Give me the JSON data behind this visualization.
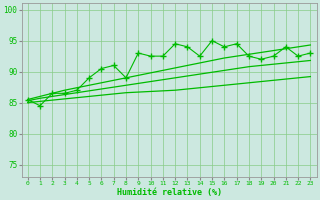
{
  "xlabel": "Humidité relative (%)",
  "xlim": [
    -0.5,
    23.5
  ],
  "ylim": [
    73,
    101
  ],
  "xticks": [
    0,
    1,
    2,
    3,
    4,
    5,
    6,
    7,
    8,
    9,
    10,
    11,
    12,
    13,
    14,
    15,
    16,
    17,
    18,
    19,
    20,
    21,
    22,
    23
  ],
  "yticks": [
    75,
    80,
    85,
    90,
    95,
    100
  ],
  "bg_color": "#cce8e0",
  "grid_color": "#88cc88",
  "line_color": "#00bb00",
  "x_data": [
    0,
    1,
    2,
    3,
    4,
    5,
    6,
    7,
    8,
    9,
    10,
    11,
    12,
    13,
    14,
    15,
    16,
    17,
    18,
    19,
    20,
    21,
    22,
    23
  ],
  "y_jagged": [
    85.5,
    84.5,
    86.5,
    86.5,
    87.0,
    89.0,
    90.5,
    91.0,
    89.0,
    93.0,
    92.5,
    92.5,
    94.5,
    94.0,
    92.5,
    95.0,
    94.0,
    94.5,
    92.5,
    92.0,
    92.5,
    94.0,
    92.5,
    93.0
  ],
  "y_upper_line": [
    85.5,
    86.0,
    86.5,
    87.0,
    87.4,
    87.8,
    88.2,
    88.6,
    89.0,
    89.4,
    89.8,
    90.2,
    90.6,
    91.0,
    91.4,
    91.8,
    92.2,
    92.5,
    92.8,
    93.1,
    93.4,
    93.7,
    94.0,
    94.3
  ],
  "y_mid_line": [
    85.3,
    85.7,
    86.0,
    86.3,
    86.6,
    86.9,
    87.2,
    87.5,
    87.8,
    88.1,
    88.4,
    88.7,
    89.0,
    89.3,
    89.6,
    89.9,
    90.2,
    90.5,
    90.8,
    91.0,
    91.2,
    91.4,
    91.6,
    91.8
  ],
  "y_lower_line": [
    85.0,
    85.2,
    85.4,
    85.6,
    85.8,
    86.0,
    86.2,
    86.4,
    86.6,
    86.7,
    86.8,
    86.9,
    87.0,
    87.2,
    87.4,
    87.6,
    87.8,
    88.0,
    88.2,
    88.4,
    88.6,
    88.8,
    89.0,
    89.2
  ]
}
